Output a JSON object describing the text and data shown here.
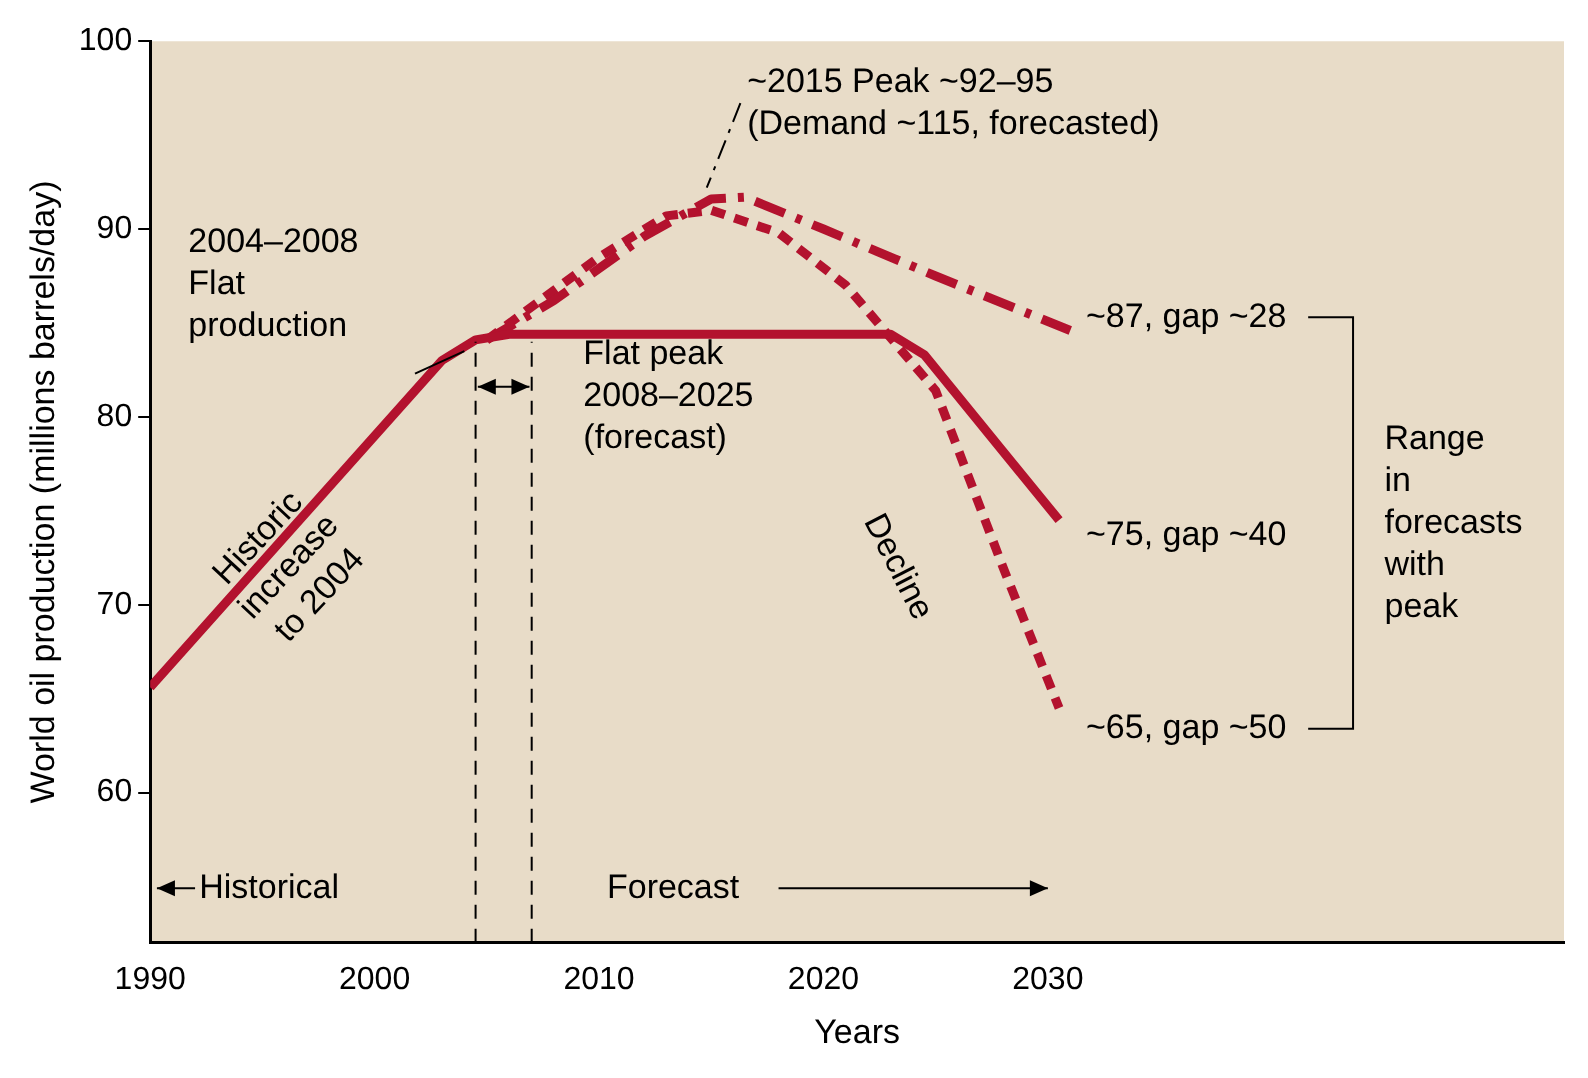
{
  "chart_data": {
    "type": "line",
    "xlabel": "Years",
    "ylabel": "World oil production (millions barrels/day)",
    "xlim": [
      1990,
      2053
    ],
    "xticks": [
      1990,
      2000,
      2010,
      2020,
      2030
    ],
    "ylim": [
      52,
      100
    ],
    "yticks": [
      60,
      70,
      80,
      90,
      100
    ],
    "grid": false,
    "legend": false,
    "marker": "none",
    "series": [
      {
        "color": "#b3122e",
        "line_style": "solid",
        "x": [
          1990,
          2003,
          2004.5,
          2006,
          2023,
          2024.5,
          2030.5
        ],
        "values": [
          65.6,
          83,
          84.1,
          84.4,
          84.4,
          83.3,
          74.5
        ]
      },
      {
        "color": "#b3122e",
        "line_style": "dashed",
        "x": [
          2005,
          2008,
          2012,
          2015,
          2016.5,
          2020,
          2025,
          2031
        ],
        "values": [
          84.1,
          86.2,
          89.6,
          91.6,
          91.7,
          90,
          87.5,
          84.6
        ]
      },
      {
        "color": "#b3122e",
        "line_style": "dotted",
        "x": [
          2005,
          2010,
          2013,
          2015,
          2018,
          2021,
          2025,
          2028,
          2030.5
        ],
        "values": [
          84.1,
          88.5,
          90.7,
          91,
          89.8,
          87,
          81.4,
          72,
          64.5
        ]
      }
    ],
    "ref_lines": [
      {
        "axis": "x",
        "value": 2004.5,
        "color": "#000000",
        "line_style": "dashed"
      },
      {
        "axis": "x",
        "value": 2007,
        "color": "#000000",
        "line_style": "dashed"
      }
    ],
    "annotations": [
      "~2015 Peak ~92–95\n(Demand ~115, forecasted)",
      "2004–2008\nFlat\nproduction",
      "Flat peak\n2008–2025\n(forecast)",
      "Historic\nincrease\nto 2004",
      "Decline",
      "~87, gap ~28",
      "~75, gap ~40",
      "~65, gap ~50",
      "Range\nin\nforecasts\nwith\npeak",
      "Historical",
      "Forecast"
    ]
  }
}
